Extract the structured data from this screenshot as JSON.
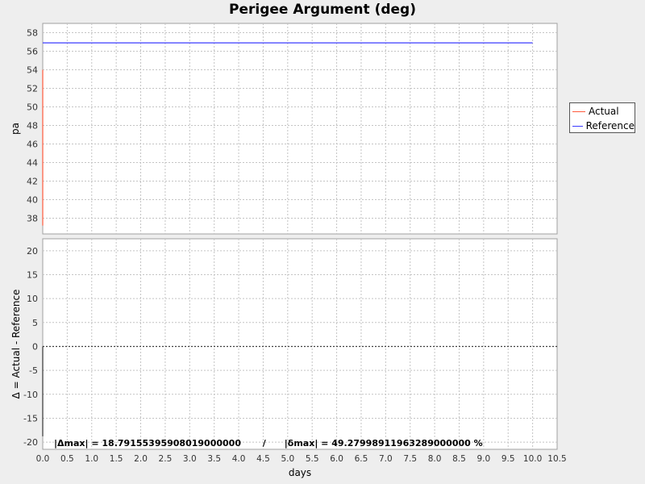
{
  "chart_data": [
    {
      "type": "line",
      "title": "Perigee Argument (deg)",
      "xlabel": "",
      "ylabel": "pa",
      "xlim": [
        0,
        10.5
      ],
      "ylim": [
        36.3,
        59
      ],
      "yticks": [
        38,
        40,
        42,
        44,
        46,
        48,
        50,
        52,
        54,
        56,
        58
      ],
      "grid": true,
      "legend": "right",
      "series": [
        {
          "name": "Actual",
          "color": "#ff5a3c",
          "x": [
            0.0,
            0.0
          ],
          "y": [
            54.0,
            37.2
          ]
        },
        {
          "name": "Reference",
          "color": "#3c3cff",
          "x": [
            0.0,
            10.0
          ],
          "y": [
            56.9,
            56.9
          ]
        }
      ]
    },
    {
      "type": "line",
      "title": "",
      "xlabel": "days",
      "ylabel": "Δ = Actual - Reference",
      "xlim": [
        0,
        10.5
      ],
      "ylim": [
        -21.5,
        22.5
      ],
      "yticks": [
        -20,
        -15,
        -10,
        -5,
        0,
        5,
        10,
        15,
        20
      ],
      "xticks": [
        0.0,
        0.5,
        1.0,
        1.5,
        2.0,
        2.5,
        3.0,
        3.5,
        4.0,
        4.5,
        5.0,
        5.5,
        6.0,
        6.5,
        7.0,
        7.5,
        8.0,
        8.5,
        9.0,
        9.5,
        10.0,
        10.5
      ],
      "grid": true,
      "series": [
        {
          "name": "Δ",
          "color": "#333333",
          "x": [
            0.0,
            0.0,
            0.0
          ],
          "y": [
            -3.0,
            -18.79,
            0.0
          ]
        }
      ]
    }
  ],
  "legend": {
    "items": [
      {
        "label": "Actual",
        "color": "#ff5a3c"
      },
      {
        "label": "Reference",
        "color": "#3c3cff"
      }
    ]
  },
  "stats_text": "|Δmax| = 18.79155395908019000000       /      |δmax| = 49.27998911963289000000 %"
}
